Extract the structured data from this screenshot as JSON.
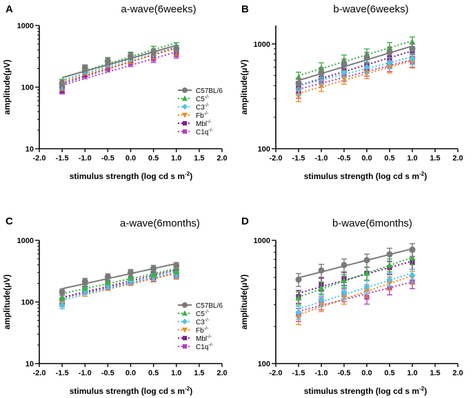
{
  "chart_data": [
    {
      "panel_label": "A",
      "title": "a-wave(6weeks)",
      "type": "line",
      "xlabel": "stimulus strength (log cd s m",
      "xlabel_sup": "-2",
      "xlabel_end": ")",
      "ylabel": "amplitude(μV)",
      "xlim": [
        -2.0,
        2.0
      ],
      "ylim": [
        10,
        1000
      ],
      "ylog": true,
      "xticks": [
        "-2.0",
        "-1.5",
        "-1.0",
        "-0.5",
        "0.0",
        "0.5",
        "1.0",
        "1.5",
        "2.0"
      ],
      "xtick_values": [
        -2.0,
        -1.5,
        -1.0,
        -0.5,
        0.0,
        0.5,
        1.0,
        1.5,
        2.0
      ],
      "yticks": [
        "10",
        "100",
        "1000"
      ],
      "ytick_values": [
        10,
        100,
        1000
      ],
      "legend": true,
      "legend_position": "right",
      "x": [
        -1.5,
        -1.0,
        -0.5,
        0.0,
        0.5,
        1.0
      ],
      "series": [
        {
          "name": "C57BL/6",
          "sup": "",
          "values": [
            115,
            205,
            265,
            320,
            370,
            420
          ]
        },
        {
          "name": "C5",
          "sup": "-/-",
          "values": [
            120,
            200,
            270,
            330,
            410,
            470
          ]
        },
        {
          "name": "C3",
          "sup": "-/-",
          "values": [
            105,
            190,
            250,
            300,
            360,
            420
          ]
        },
        {
          "name": "Fb",
          "sup": "-/-",
          "values": [
            100,
            180,
            235,
            275,
            330,
            380
          ]
        },
        {
          "name": "Mbl",
          "sup": "-/-",
          "values": [
            92,
            170,
            230,
            280,
            330,
            390
          ]
        },
        {
          "name": "C1q",
          "sup": "-/-",
          "values": [
            88,
            155,
            200,
            245,
            285,
            335
          ]
        }
      ]
    },
    {
      "panel_label": "B",
      "title": "b-wave(6weeks)",
      "type": "line",
      "xlabel": "stimulus strength (log cd s m",
      "xlabel_sup": "-2",
      "xlabel_end": ")",
      "ylabel": "amplitude(μV)",
      "xlim": [
        -2.0,
        2.0
      ],
      "ylim": [
        100,
        1500
      ],
      "ylog": true,
      "xticks": [
        "-2.0",
        "-1.5",
        "-1.0",
        "-0.5",
        "0.0",
        "0.5",
        "1.0",
        "1.5",
        "2.0"
      ],
      "xtick_values": [
        -2.0,
        -1.5,
        -1.0,
        -0.5,
        0.0,
        0.5,
        1.0,
        1.5,
        2.0
      ],
      "yticks": [
        "100",
        "1000"
      ],
      "ytick_values": [
        100,
        1000
      ],
      "legend": false,
      "x": [
        -1.5,
        -1.0,
        -0.5,
        0.0,
        0.5,
        1.0
      ],
      "series": [
        {
          "name": "C57BL/6",
          "sup": "",
          "values": [
            420,
            530,
            640,
            740,
            830,
            900
          ]
        },
        {
          "name": "C5",
          "sup": "-/-",
          "values": [
            480,
            590,
            700,
            800,
            920,
            1040
          ]
        },
        {
          "name": "C3",
          "sup": "-/-",
          "values": [
            370,
            470,
            540,
            600,
            660,
            720
          ]
        },
        {
          "name": "Fb",
          "sup": "-/-",
          "values": [
            320,
            400,
            470,
            530,
            600,
            670
          ]
        },
        {
          "name": "Mbl",
          "sup": "-/-",
          "values": [
            390,
            470,
            560,
            640,
            740,
            840
          ]
        },
        {
          "name": "C1q",
          "sup": "-/-",
          "values": [
            345,
            440,
            500,
            560,
            620,
            680
          ]
        }
      ]
    },
    {
      "panel_label": "C",
      "title": "a-wave(6months)",
      "type": "line",
      "xlabel": "stimulus strength (log cd s m",
      "xlabel_sup": "-2",
      "xlabel_end": ")",
      "ylabel": "amplitude(μV)",
      "xlim": [
        -2.0,
        2.0
      ],
      "ylim": [
        10,
        1000
      ],
      "ylog": true,
      "xticks": [
        "-2.0",
        "-1.5",
        "-1.0",
        "-0.5",
        "0.0",
        "0.5",
        "1.0",
        "1.5",
        "2.0"
      ],
      "xtick_values": [
        -2.0,
        -1.5,
        -1.0,
        -0.5,
        0.0,
        0.5,
        1.0,
        1.5,
        2.0
      ],
      "yticks": [
        "10",
        "100",
        "1000"
      ],
      "ytick_values": [
        10,
        100,
        1000
      ],
      "legend": true,
      "legend_position": "right",
      "x": [
        -1.5,
        -1.0,
        -0.5,
        0.0,
        0.5,
        1.0
      ],
      "series": [
        {
          "name": "C57BL/6",
          "sup": "",
          "values": [
            145,
            215,
            255,
            300,
            350,
            390
          ]
        },
        {
          "name": "C5",
          "sup": "-/-",
          "values": [
            120,
            175,
            215,
            255,
            285,
            320
          ]
        },
        {
          "name": "C3",
          "sup": "-/-",
          "values": [
            88,
            150,
            185,
            220,
            255,
            280
          ]
        },
        {
          "name": "Fb",
          "sup": "-/-",
          "values": [
            95,
            140,
            175,
            210,
            240,
            265
          ]
        },
        {
          "name": "Mbl",
          "sup": "-/-",
          "values": [
            100,
            160,
            200,
            235,
            270,
            300
          ]
        },
        {
          "name": "C1q",
          "sup": "-/-",
          "values": [
            105,
            150,
            180,
            215,
            245,
            270
          ]
        }
      ]
    },
    {
      "panel_label": "D",
      "title": "b-wave(6months)",
      "type": "line",
      "xlabel": "stimulus strength (log cd s m",
      "xlabel_sup": "-2",
      "xlabel_end": ")",
      "ylabel": "amplitude(μV)",
      "xlim": [
        -2.0,
        2.0
      ],
      "ylim": [
        100,
        1000
      ],
      "ylog": true,
      "xticks": [
        "-2.0",
        "-1.5",
        "-1.0",
        "-0.5",
        "0.0",
        "0.5",
        "1.0",
        "1.5",
        "2.0"
      ],
      "xtick_values": [
        -2.0,
        -1.5,
        -1.0,
        -0.5,
        0.0,
        0.5,
        1.0,
        1.5,
        2.0
      ],
      "yticks": [
        "100",
        "1000"
      ],
      "ytick_values": [
        100,
        1000
      ],
      "legend": false,
      "x": [
        -1.5,
        -1.0,
        -0.5,
        0.0,
        0.5,
        1.0
      ],
      "series": [
        {
          "name": "C57BL/6",
          "sup": "",
          "values": [
            480,
            570,
            630,
            690,
            770,
            840
          ]
        },
        {
          "name": "C5",
          "sup": "-/-",
          "values": [
            340,
            410,
            470,
            540,
            630,
            720
          ]
        },
        {
          "name": "C3",
          "sup": "-/-",
          "values": [
            260,
            330,
            380,
            420,
            480,
            520
          ]
        },
        {
          "name": "Fb",
          "sup": "-/-",
          "values": [
            235,
            300,
            345,
            390,
            450,
            500
          ]
        },
        {
          "name": "Mbl",
          "sup": "-/-",
          "values": [
            350,
            440,
            490,
            540,
            600,
            660
          ]
        },
        {
          "name": "C1q",
          "sup": "-/-",
          "values": [
            250,
            310,
            360,
            345,
            410,
            460
          ]
        }
      ]
    }
  ],
  "style": {
    "series_colors": [
      "#7a7a7a",
      "#3cb043",
      "#4fc3e8",
      "#f08a24",
      "#7b1f8c",
      "#b040c0"
    ],
    "series_markers": [
      "circle",
      "triangle",
      "diamond",
      "triangle-down",
      "square",
      "square"
    ],
    "axis_color": "#000000"
  }
}
